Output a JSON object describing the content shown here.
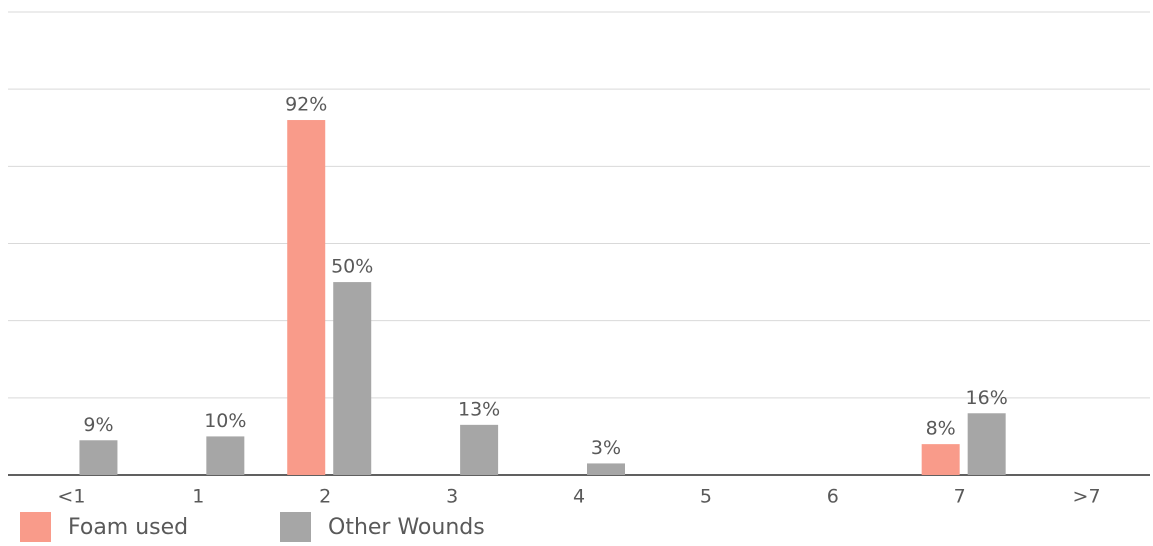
{
  "chart_data": {
    "type": "bar",
    "categories": [
      "<1",
      "1",
      "2",
      "3",
      "4",
      "5",
      "6",
      "7",
      ">7"
    ],
    "series": [
      {
        "name": "Foam used",
        "color": "#f99b8a",
        "values": [
          null,
          null,
          92,
          null,
          null,
          null,
          null,
          8,
          null
        ],
        "value_labels": [
          null,
          null,
          "92%",
          null,
          null,
          null,
          null,
          "8%",
          null
        ]
      },
      {
        "name": "Other Wounds",
        "color": "#a6a6a6",
        "values": [
          9,
          10,
          50,
          13,
          3,
          null,
          null,
          16,
          null
        ],
        "value_labels": [
          "9%",
          "10%",
          "50%",
          "13%",
          "3%",
          null,
          null,
          "16%",
          null
        ]
      }
    ],
    "ylim": [
      0,
      120
    ],
    "yticks": [
      0,
      20,
      40,
      60,
      80,
      100,
      120
    ],
    "grid": true
  }
}
